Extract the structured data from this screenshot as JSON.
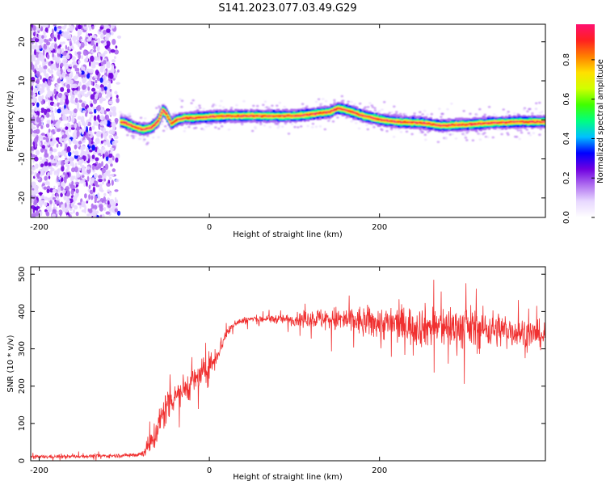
{
  "title": "S141.2023.077.03.49.G29",
  "colors": {
    "snr_line": "#f03030",
    "axis": "#000000",
    "colormap": [
      "#ffffff",
      "#e8d8ff",
      "#b070f0",
      "#7000e0",
      "#0000ff",
      "#00c0ff",
      "#00ff80",
      "#40ff00",
      "#d0ff00",
      "#ffe000",
      "#ff8000",
      "#ff2020",
      "#ff1070"
    ]
  },
  "chart_data": [
    {
      "type": "heatmap",
      "title": "S141.2023.077.03.49.G29",
      "xlabel": "Height of straight line (km)",
      "ylabel": "Frequency (Hz)",
      "xlim": [
        -210,
        395
      ],
      "ylim": [
        -25,
        24.5
      ],
      "xticks": [
        -200,
        0,
        200
      ],
      "yticks": [
        -20,
        -10,
        0,
        10,
        20
      ],
      "colorbar": {
        "label": "Normalized spectral amplitude",
        "range": [
          0,
          0.98
        ],
        "ticks": [
          "0.0",
          "0.2",
          "0.4",
          "0.6",
          "0.8"
        ],
        "tick_values": [
          0,
          0.2,
          0.4,
          0.6,
          0.8
        ]
      },
      "noise_region_x": [
        -210,
        -105
      ],
      "ridge": {
        "x": [
          -105,
          -100,
          -90,
          -80,
          -70,
          -62,
          -56,
          -52,
          -46,
          -40,
          -30,
          -20,
          0,
          20,
          60,
          100,
          120,
          140,
          150,
          160,
          180,
          200,
          220,
          250,
          270,
          300,
          330,
          360,
          395
        ],
        "freq": [
          -0.5,
          -0.8,
          -1.8,
          -2.5,
          -2.0,
          -0.5,
          2.5,
          1.5,
          -1.0,
          0.0,
          0.5,
          0.5,
          0.8,
          1.0,
          1.0,
          1.0,
          1.5,
          2.0,
          3.0,
          2.5,
          1.0,
          0.0,
          -0.5,
          -0.8,
          -1.5,
          -1.2,
          -0.8,
          -0.5,
          -0.5
        ],
        "halfwidth_hz": 1.6
      }
    },
    {
      "type": "line",
      "xlabel": "Height of straight line (km)",
      "ylabel": "SNR (10 * v/v)",
      "xlim": [
        -210,
        395
      ],
      "ylim": [
        0,
        520
      ],
      "xticks": [
        -200,
        0,
        200
      ],
      "yticks": [
        0,
        100,
        200,
        300,
        400,
        500
      ],
      "series": [
        {
          "x": [
            -210,
            -150,
            -100,
            -80,
            -70,
            -60,
            -50,
            -40,
            -30,
            -20,
            -10,
            0,
            10,
            20,
            30,
            50,
            80,
            100,
            120,
            150,
            200,
            250,
            300,
            350,
            395
          ],
          "mean": [
            10,
            12,
            14,
            18,
            40,
            90,
            150,
            180,
            190,
            210,
            230,
            250,
            290,
            340,
            370,
            380,
            380,
            378,
            382,
            378,
            370,
            360,
            358,
            350,
            335
          ],
          "noise": [
            5,
            5,
            5,
            8,
            30,
            50,
            50,
            45,
            40,
            40,
            40,
            40,
            30,
            15,
            10,
            10,
            12,
            15,
            25,
            35,
            45,
            55,
            60,
            45,
            35
          ]
        }
      ]
    }
  ]
}
